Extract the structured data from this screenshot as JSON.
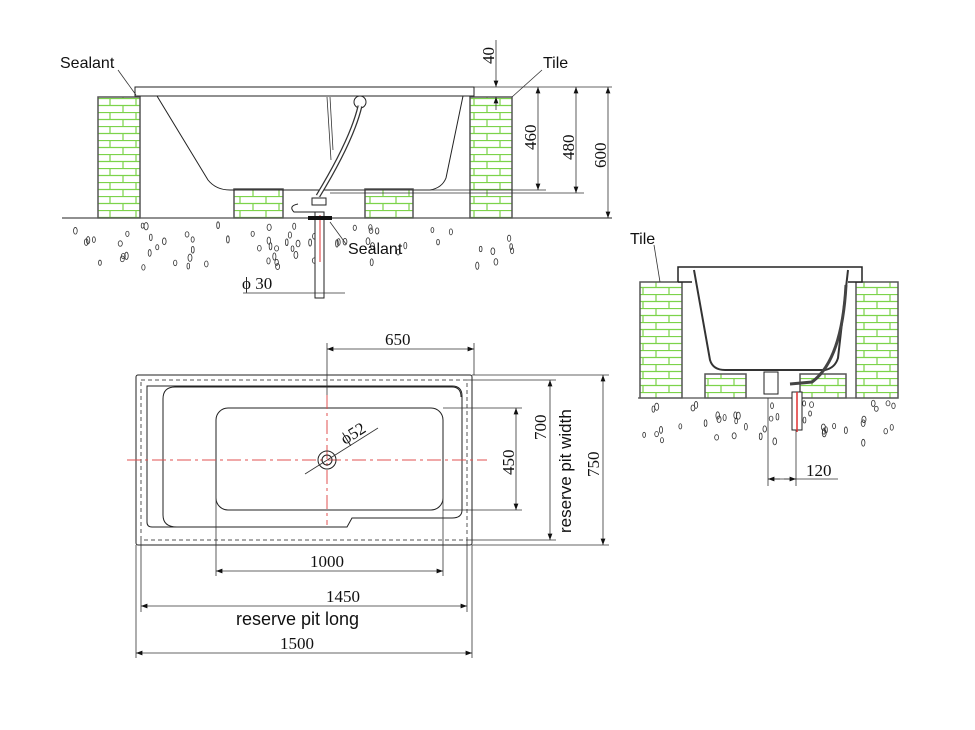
{
  "side_section": {
    "label_sealant_top": "Sealant",
    "label_tile": "Tile",
    "label_sealant_drain": "Sealant",
    "dim_40": "40",
    "dim_460": "460",
    "dim_480": "480",
    "dim_600": "600",
    "dim_pipe": "ϕ 30"
  },
  "end_section": {
    "label_tile": "Tile",
    "dim_120": "120"
  },
  "plan_view": {
    "dim_650": "650",
    "dim_drain": "ϕ52",
    "dim_450": "450",
    "dim_700": "700",
    "label_pit_width": "reserve pit width",
    "dim_750": "750",
    "dim_1000": "1000",
    "dim_1450": "1450",
    "label_pit_long": "reserve pit long",
    "dim_1500": "1500"
  },
  "colors": {
    "brick_mortar": "#7cd34a",
    "centerline": "#e05050",
    "line": "#222222"
  }
}
